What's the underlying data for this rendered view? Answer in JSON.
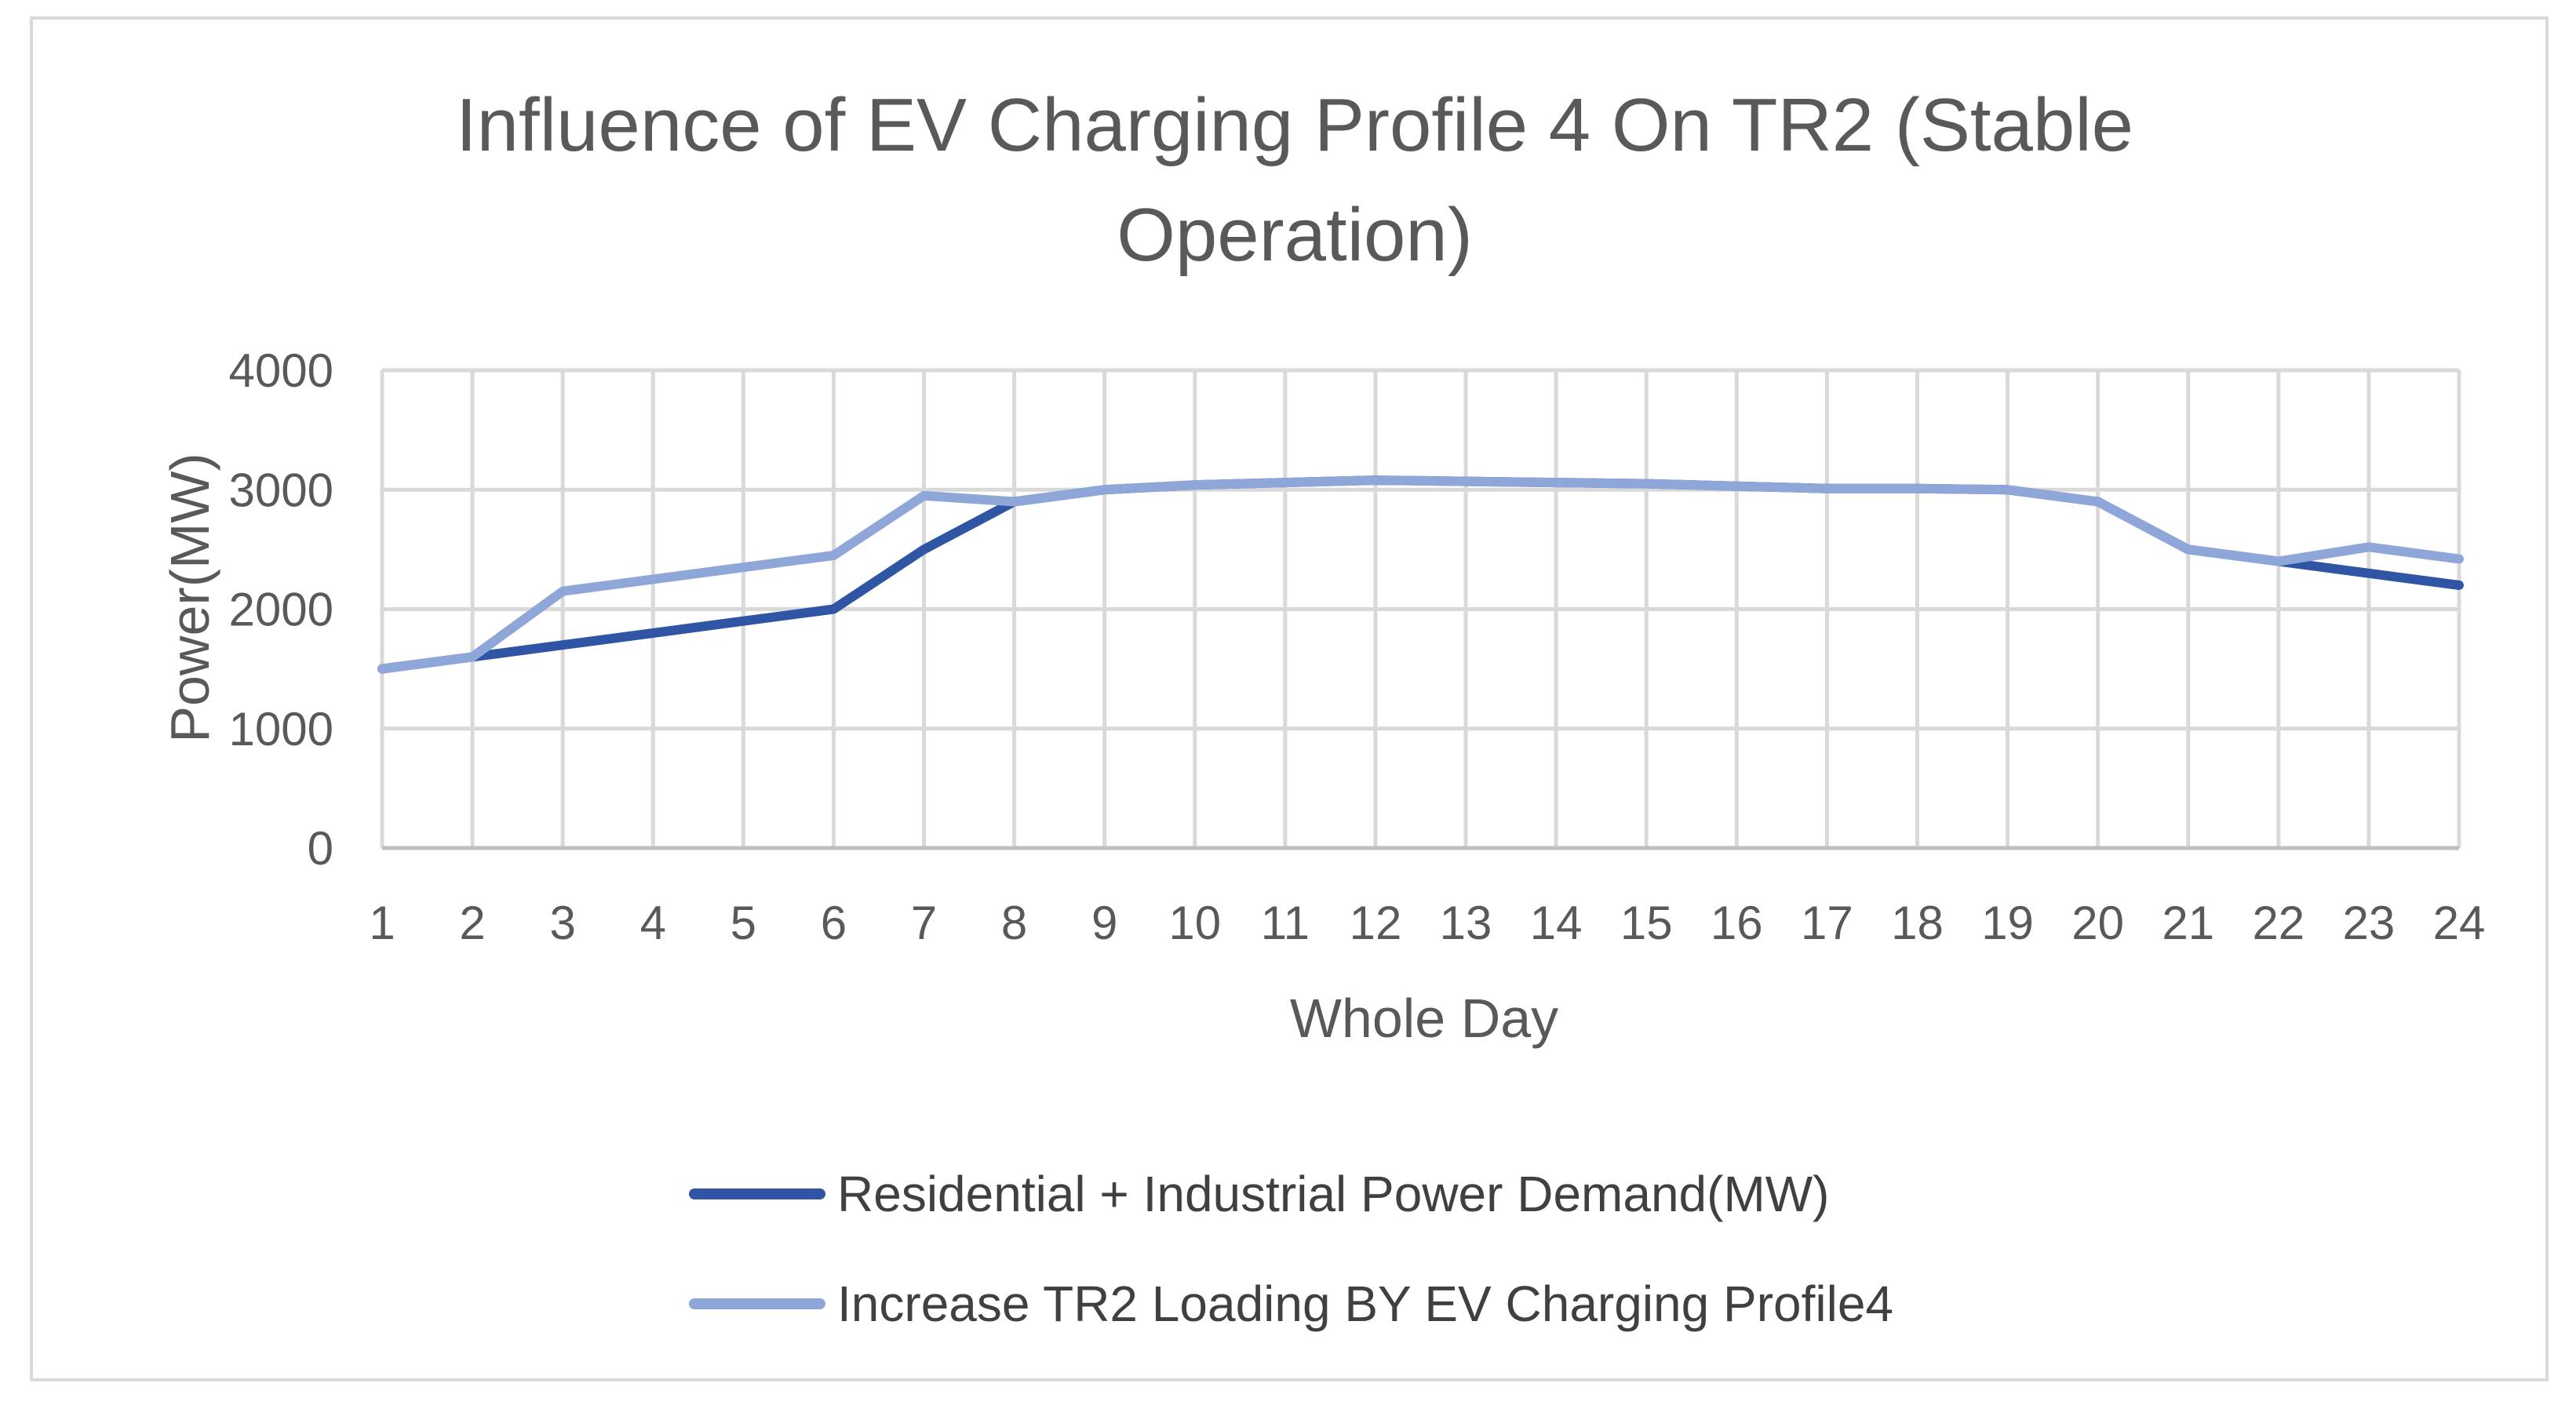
{
  "chart_data": {
    "type": "line",
    "title_lines": [
      "Influence of EV Charging Profile 4 On TR2 (Stable",
      "Operation)"
    ],
    "xlabel": "Whole Day",
    "ylabel": "Power(MW)",
    "categories": [
      "1",
      "2",
      "3",
      "4",
      "5",
      "6",
      "7",
      "8",
      "9",
      "10",
      "11",
      "12",
      "13",
      "14",
      "15",
      "16",
      "17",
      "18",
      "19",
      "20",
      "21",
      "22",
      "23",
      "24"
    ],
    "ylim": [
      0,
      4000
    ],
    "yticks": [
      "0",
      "1000",
      "2000",
      "3000",
      "4000"
    ],
    "grid": true,
    "legend_position": "bottom",
    "series": [
      {
        "name": "Residential + Industrial Power Demand(MW)",
        "color": "#2f55a4",
        "values": [
          1500,
          1600,
          1700,
          1800,
          1900,
          2000,
          2500,
          2900,
          3000,
          3040,
          3060,
          3080,
          3070,
          3060,
          3050,
          3030,
          3010,
          3010,
          3000,
          2900,
          2500,
          2400,
          2300,
          2200
        ]
      },
      {
        "name": "Increase TR2 Loading BY EV Charging Profile4",
        "color": "#8fa6d9",
        "values": [
          1500,
          1600,
          2150,
          2250,
          2350,
          2450,
          2950,
          2900,
          3000,
          3040,
          3060,
          3080,
          3070,
          3060,
          3050,
          3030,
          3010,
          3010,
          3000,
          2900,
          2500,
          2400,
          2520,
          2420
        ]
      }
    ]
  }
}
